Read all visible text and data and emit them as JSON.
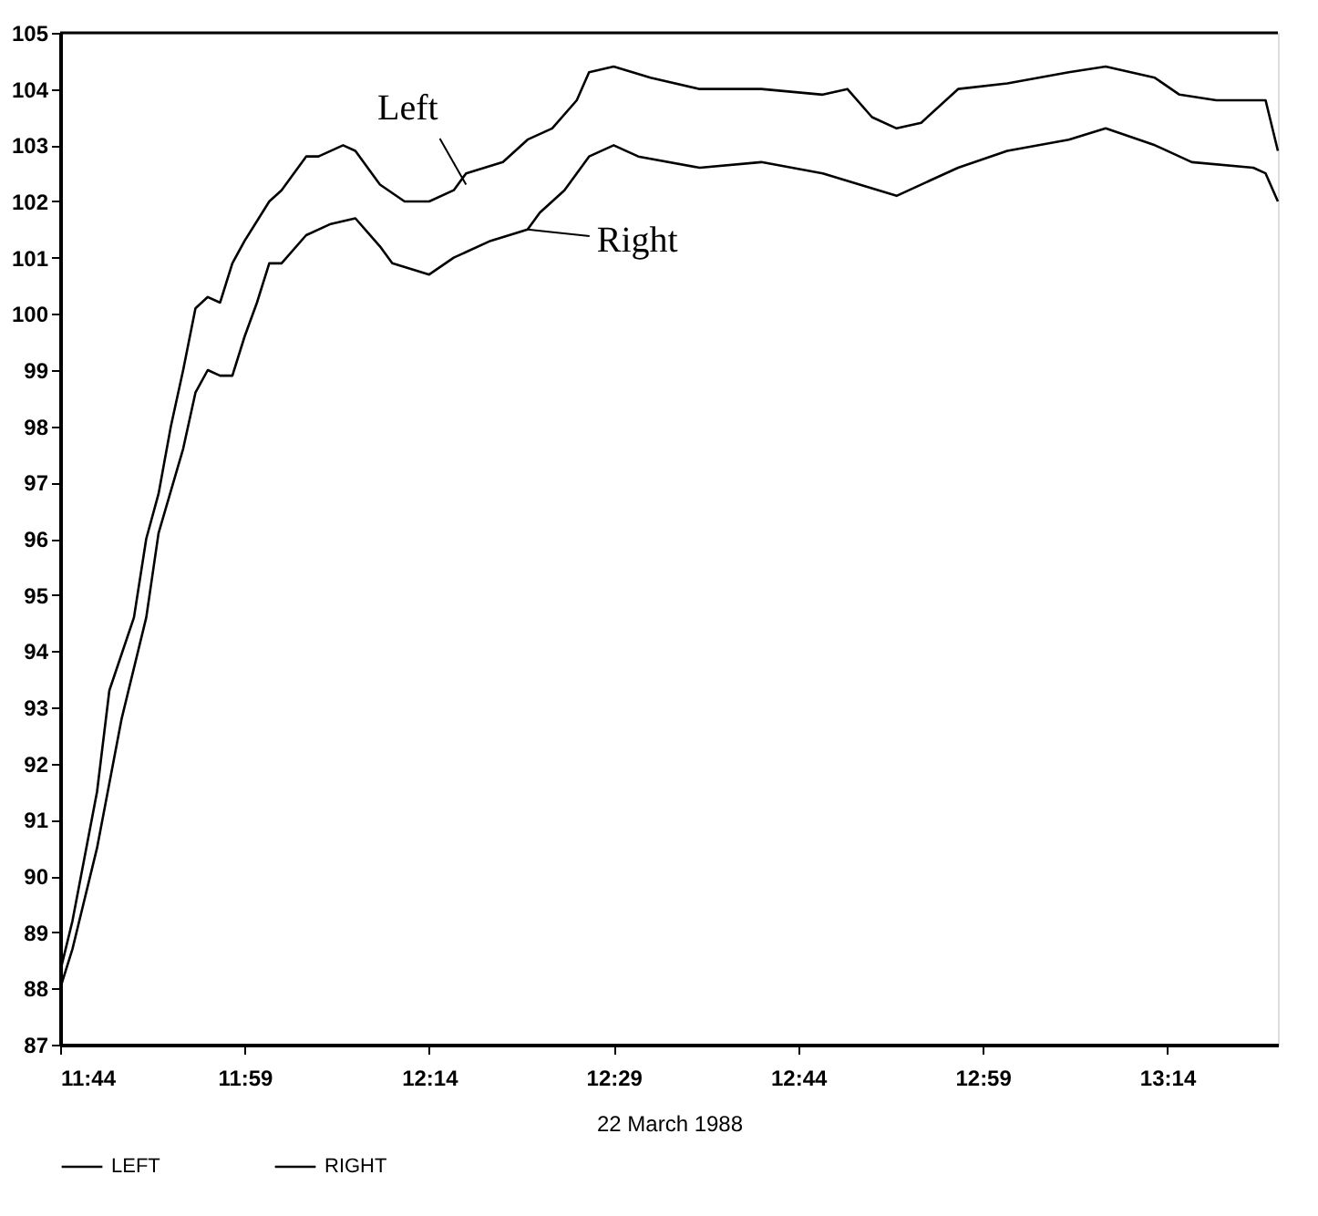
{
  "chart_data": {
    "type": "line",
    "xlabel": "22 March 1988",
    "xlim": [
      "1988-03-22T11:44",
      "1988-03-22T13:23"
    ],
    "xticks": [
      {
        "value": "1988-03-22T11:44",
        "label": "11:44"
      },
      {
        "value": "1988-03-22T11:59",
        "label": "11:59"
      },
      {
        "value": "1988-03-22T12:14",
        "label": "12:14"
      },
      {
        "value": "1988-03-22T12:29",
        "label": "12:29"
      },
      {
        "value": "1988-03-22T12:44",
        "label": "12:44"
      },
      {
        "value": "1988-03-22T12:59",
        "label": "12:59"
      },
      {
        "value": "1988-03-22T13:14",
        "label": "13:14"
      }
    ],
    "ylim": [
      87,
      105
    ],
    "yticks": [
      87,
      88,
      89,
      90,
      91,
      92,
      93,
      94,
      95,
      96,
      97,
      98,
      99,
      100,
      101,
      102,
      103,
      104,
      105
    ],
    "grid": false,
    "legend": "bottom",
    "line_style": "solid",
    "marker": "none",
    "series": [
      {
        "name": "LEFT",
        "color": "#000000",
        "x": [
          "1988-03-22T11:44",
          "1988-03-22T11:45",
          "1988-03-22T11:47",
          "1988-03-22T11:48",
          "1988-03-22T11:50",
          "1988-03-22T11:51",
          "1988-03-22T11:52",
          "1988-03-22T11:53",
          "1988-03-22T11:54",
          "1988-03-22T11:55",
          "1988-03-22T11:56",
          "1988-03-22T11:57",
          "1988-03-22T11:58",
          "1988-03-22T11:59",
          "1988-03-22T12:01",
          "1988-03-22T12:02",
          "1988-03-22T12:04",
          "1988-03-22T12:05",
          "1988-03-22T12:07",
          "1988-03-22T12:08",
          "1988-03-22T12:10",
          "1988-03-22T12:12",
          "1988-03-22T12:14",
          "1988-03-22T12:16",
          "1988-03-22T12:17",
          "1988-03-22T12:20",
          "1988-03-22T12:22",
          "1988-03-22T12:24",
          "1988-03-22T12:26",
          "1988-03-22T12:27",
          "1988-03-22T12:29",
          "1988-03-22T12:32",
          "1988-03-22T12:36",
          "1988-03-22T12:41",
          "1988-03-22T12:46",
          "1988-03-22T12:48",
          "1988-03-22T12:50",
          "1988-03-22T12:52",
          "1988-03-22T12:54",
          "1988-03-22T12:57",
          "1988-03-22T13:01",
          "1988-03-22T13:06",
          "1988-03-22T13:09",
          "1988-03-22T13:13",
          "1988-03-22T13:15",
          "1988-03-22T13:18",
          "1988-03-22T13:22",
          "1988-03-22T13:23"
        ],
        "values": [
          88.3,
          89.2,
          91.5,
          93.3,
          94.6,
          96.0,
          96.8,
          98.0,
          99.0,
          100.1,
          100.3,
          100.2,
          100.9,
          101.3,
          102.0,
          102.2,
          102.8,
          102.8,
          103.0,
          102.9,
          102.3,
          102.0,
          102.0,
          102.2,
          102.5,
          102.7,
          103.1,
          103.3,
          103.8,
          104.3,
          104.4,
          104.2,
          104.0,
          104.0,
          103.9,
          104.0,
          103.5,
          103.3,
          103.4,
          104.0,
          104.1,
          104.3,
          104.4,
          104.2,
          103.9,
          103.8,
          103.8,
          102.9
        ]
      },
      {
        "name": "RIGHT",
        "color": "#000000",
        "x": [
          "1988-03-22T11:44",
          "1988-03-22T11:45",
          "1988-03-22T11:47",
          "1988-03-22T11:49",
          "1988-03-22T11:51",
          "1988-03-22T11:52",
          "1988-03-22T11:54",
          "1988-03-22T11:55",
          "1988-03-22T11:56",
          "1988-03-22T11:57",
          "1988-03-22T11:58",
          "1988-03-22T11:59",
          "1988-03-22T12:00",
          "1988-03-22T12:01",
          "1988-03-22T12:02",
          "1988-03-22T12:04",
          "1988-03-22T12:06",
          "1988-03-22T12:08",
          "1988-03-22T12:10",
          "1988-03-22T12:11",
          "1988-03-22T12:14",
          "1988-03-22T12:16",
          "1988-03-22T12:19",
          "1988-03-22T12:22",
          "1988-03-22T12:23",
          "1988-03-22T12:25",
          "1988-03-22T12:27",
          "1988-03-22T12:29",
          "1988-03-22T12:31",
          "1988-03-22T12:36",
          "1988-03-22T12:41",
          "1988-03-22T12:46",
          "1988-03-22T12:52",
          "1988-03-22T12:57",
          "1988-03-22T13:01",
          "1988-03-22T13:06",
          "1988-03-22T13:09",
          "1988-03-22T13:13",
          "1988-03-22T13:16",
          "1988-03-22T13:21",
          "1988-03-22T13:22",
          "1988-03-22T13:23"
        ],
        "values": [
          88.0,
          88.7,
          90.5,
          92.8,
          94.6,
          96.1,
          97.6,
          98.6,
          99.0,
          98.9,
          98.9,
          99.6,
          100.2,
          100.9,
          100.9,
          101.4,
          101.6,
          101.7,
          101.2,
          100.9,
          100.7,
          101.0,
          101.3,
          101.5,
          101.8,
          102.2,
          102.8,
          103.0,
          102.8,
          102.6,
          102.7,
          102.5,
          102.1,
          102.6,
          102.9,
          103.1,
          103.3,
          103.0,
          102.7,
          102.6,
          102.5,
          102.0
        ]
      }
    ],
    "annotations": [
      {
        "text": "Left",
        "x": "1988-03-22T12:17",
        "y": 102.3
      },
      {
        "text": "Right",
        "x": "1988-03-22T12:22",
        "y": 101.5
      }
    ]
  }
}
